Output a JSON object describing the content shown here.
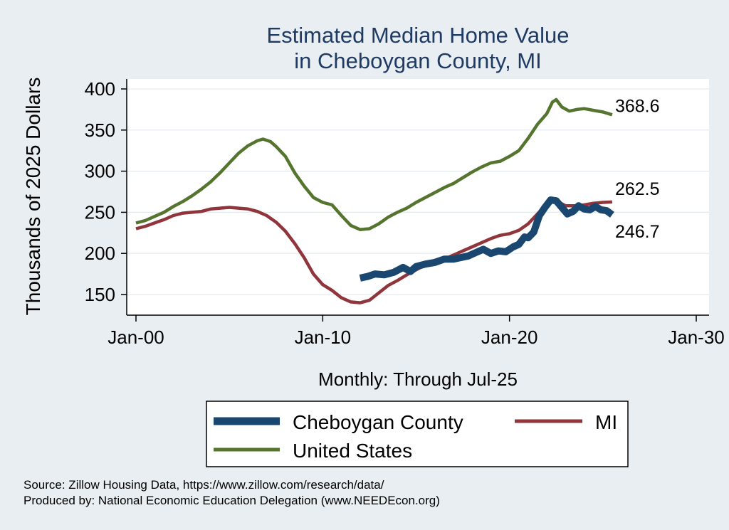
{
  "chart_data": {
    "type": "line",
    "title": [
      "Estimated Median Home Value",
      "in Cheboygan County, MI"
    ],
    "xlabel": "Monthly: Through Jul-25",
    "ylabel": "Thousands of 2025 Dollars",
    "x_ticks": [
      "Jan-00",
      "Jan-10",
      "Jan-20",
      "Jan-30"
    ],
    "x_tick_values": [
      2000,
      2010,
      2020,
      2030
    ],
    "xlim": [
      2000,
      2030
    ],
    "y_ticks": [
      150,
      200,
      250,
      300,
      350,
      400
    ],
    "ylim": [
      150,
      400
    ],
    "grid": true,
    "legend_position": "bottom",
    "colors": {
      "cheboygan": "#1a476f",
      "mi": "#90353b",
      "us": "#55752f",
      "plot_bg": "#ffffff",
      "page_bg": "#e8eef2",
      "title": "#1f3b64"
    },
    "series": [
      {
        "name": "Cheboygan County",
        "key": "cheboygan",
        "end_label": "246.7",
        "points": [
          [
            2012.0,
            170
          ],
          [
            2012.4,
            172
          ],
          [
            2012.8,
            175
          ],
          [
            2013.3,
            174
          ],
          [
            2013.8,
            177
          ],
          [
            2014.3,
            183
          ],
          [
            2014.7,
            178
          ],
          [
            2015.0,
            184
          ],
          [
            2015.5,
            187
          ],
          [
            2016.0,
            189
          ],
          [
            2016.5,
            193
          ],
          [
            2017.0,
            193
          ],
          [
            2017.4,
            195
          ],
          [
            2017.8,
            197
          ],
          [
            2018.2,
            201
          ],
          [
            2018.6,
            205
          ],
          [
            2019.0,
            200
          ],
          [
            2019.4,
            203
          ],
          [
            2019.8,
            202
          ],
          [
            2020.2,
            208
          ],
          [
            2020.5,
            211
          ],
          [
            2020.8,
            220
          ],
          [
            2021.0,
            219
          ],
          [
            2021.3,
            226
          ],
          [
            2021.6,
            246
          ],
          [
            2021.9,
            256
          ],
          [
            2022.2,
            265
          ],
          [
            2022.5,
            264
          ],
          [
            2022.8,
            256
          ],
          [
            2023.1,
            248
          ],
          [
            2023.4,
            251
          ],
          [
            2023.7,
            258
          ],
          [
            2024.0,
            254
          ],
          [
            2024.3,
            253
          ],
          [
            2024.6,
            257
          ],
          [
            2024.9,
            253
          ],
          [
            2025.2,
            252
          ],
          [
            2025.5,
            247
          ]
        ]
      },
      {
        "name": "MI",
        "key": "mi",
        "end_label": "262.5",
        "points": [
          [
            2000.0,
            230
          ],
          [
            2000.5,
            233
          ],
          [
            2001.0,
            237
          ],
          [
            2001.5,
            241
          ],
          [
            2002.0,
            246
          ],
          [
            2002.5,
            249
          ],
          [
            2003.0,
            250
          ],
          [
            2003.5,
            251
          ],
          [
            2004.0,
            254
          ],
          [
            2004.5,
            255
          ],
          [
            2005.0,
            256
          ],
          [
            2005.5,
            255
          ],
          [
            2006.0,
            254
          ],
          [
            2006.5,
            251
          ],
          [
            2007.0,
            246
          ],
          [
            2007.5,
            238
          ],
          [
            2008.0,
            227
          ],
          [
            2008.5,
            212
          ],
          [
            2009.0,
            195
          ],
          [
            2009.5,
            175
          ],
          [
            2010.0,
            162
          ],
          [
            2010.5,
            155
          ],
          [
            2011.0,
            146
          ],
          [
            2011.5,
            141
          ],
          [
            2012.0,
            140
          ],
          [
            2012.5,
            143
          ],
          [
            2013.0,
            152
          ],
          [
            2013.5,
            161
          ],
          [
            2014.0,
            167
          ],
          [
            2014.5,
            174
          ],
          [
            2015.0,
            180
          ],
          [
            2015.5,
            186
          ],
          [
            2016.0,
            189
          ],
          [
            2016.5,
            193
          ],
          [
            2017.0,
            198
          ],
          [
            2017.5,
            203
          ],
          [
            2018.0,
            208
          ],
          [
            2018.5,
            213
          ],
          [
            2019.0,
            218
          ],
          [
            2019.5,
            222
          ],
          [
            2020.0,
            224
          ],
          [
            2020.5,
            228
          ],
          [
            2021.0,
            236
          ],
          [
            2021.5,
            248
          ],
          [
            2022.0,
            260
          ],
          [
            2022.5,
            264
          ],
          [
            2023.0,
            258
          ],
          [
            2023.5,
            258
          ],
          [
            2024.0,
            259
          ],
          [
            2024.5,
            261
          ],
          [
            2025.0,
            262
          ],
          [
            2025.5,
            262.5
          ]
        ]
      },
      {
        "name": "United States",
        "key": "us",
        "end_label": "368.6",
        "points": [
          [
            2000.0,
            237
          ],
          [
            2000.5,
            240
          ],
          [
            2001.0,
            245
          ],
          [
            2001.5,
            250
          ],
          [
            2002.0,
            257
          ],
          [
            2002.5,
            263
          ],
          [
            2003.0,
            270
          ],
          [
            2003.5,
            278
          ],
          [
            2004.0,
            287
          ],
          [
            2004.5,
            298
          ],
          [
            2005.0,
            310
          ],
          [
            2005.5,
            322
          ],
          [
            2006.0,
            331
          ],
          [
            2006.5,
            337
          ],
          [
            2006.8,
            339
          ],
          [
            2007.2,
            336
          ],
          [
            2007.5,
            330
          ],
          [
            2008.0,
            318
          ],
          [
            2008.5,
            298
          ],
          [
            2009.0,
            282
          ],
          [
            2009.5,
            268
          ],
          [
            2010.0,
            262
          ],
          [
            2010.5,
            259
          ],
          [
            2011.0,
            246
          ],
          [
            2011.5,
            234
          ],
          [
            2012.0,
            229
          ],
          [
            2012.5,
            230
          ],
          [
            2013.0,
            236
          ],
          [
            2013.5,
            244
          ],
          [
            2014.0,
            250
          ],
          [
            2014.5,
            255
          ],
          [
            2015.0,
            262
          ],
          [
            2015.5,
            268
          ],
          [
            2016.0,
            274
          ],
          [
            2016.5,
            280
          ],
          [
            2017.0,
            285
          ],
          [
            2017.5,
            292
          ],
          [
            2018.0,
            299
          ],
          [
            2018.5,
            305
          ],
          [
            2019.0,
            310
          ],
          [
            2019.5,
            312
          ],
          [
            2020.0,
            318
          ],
          [
            2020.5,
            325
          ],
          [
            2021.0,
            340
          ],
          [
            2021.5,
            357
          ],
          [
            2022.0,
            370
          ],
          [
            2022.3,
            384
          ],
          [
            2022.5,
            387
          ],
          [
            2022.8,
            378
          ],
          [
            2023.2,
            373
          ],
          [
            2023.6,
            375
          ],
          [
            2024.0,
            376
          ],
          [
            2024.5,
            374
          ],
          [
            2025.0,
            372
          ],
          [
            2025.5,
            368.6
          ]
        ]
      }
    ]
  },
  "source": {
    "line1": "Source: Zillow Housing Data, https://www.zillow.com/research/data/",
    "line2": "Produced by: National Economic Education Delegation (www.NEEDEcon.org)"
  }
}
